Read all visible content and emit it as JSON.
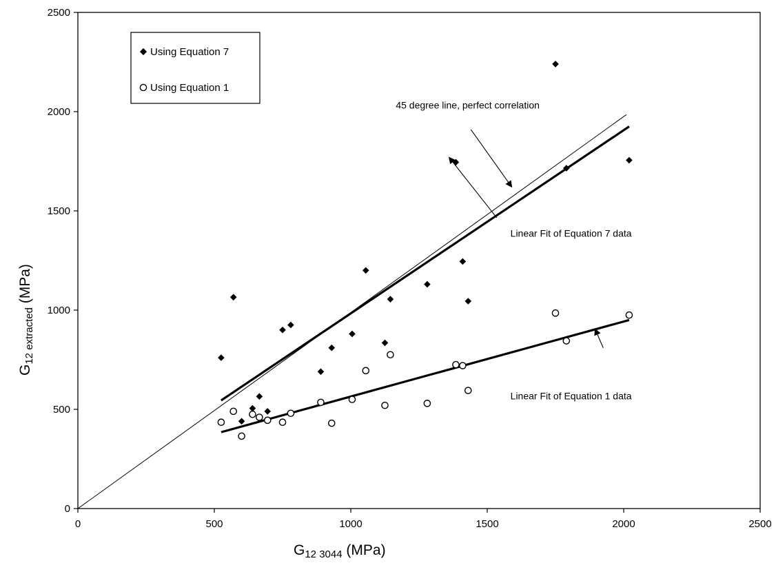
{
  "chart_data": {
    "type": "scatter",
    "xlabel": {
      "main": "G",
      "sub": "12 3044",
      "unit": " (MPa)"
    },
    "ylabel": {
      "main": "G",
      "sub": "12 extracted",
      "unit": " (MPa)"
    },
    "xlim": [
      0,
      2500
    ],
    "ylim": [
      0,
      2500
    ],
    "x_ticks": [
      "0",
      "500",
      "1000",
      "1500",
      "2000",
      "2500"
    ],
    "y_ticks": [
      "0",
      "500",
      "1000",
      "1500",
      "2000",
      "2500"
    ],
    "grid": false,
    "legend": {
      "placement": "top-left",
      "entries": [
        "Using Equation 7",
        "Using Equation 1"
      ]
    },
    "series": [
      {
        "name": "Using Equation 7",
        "marker": "filled-diamond",
        "points": [
          [
            525,
            760
          ],
          [
            570,
            1065
          ],
          [
            600,
            440
          ],
          [
            640,
            505
          ],
          [
            665,
            565
          ],
          [
            695,
            490
          ],
          [
            750,
            900
          ],
          [
            780,
            925
          ],
          [
            890,
            690
          ],
          [
            930,
            810
          ],
          [
            1005,
            880
          ],
          [
            1055,
            1200
          ],
          [
            1125,
            835
          ],
          [
            1145,
            1055
          ],
          [
            1280,
            1130
          ],
          [
            1385,
            1745
          ],
          [
            1410,
            1245
          ],
          [
            1430,
            1045
          ],
          [
            1750,
            2240
          ],
          [
            1790,
            1715
          ],
          [
            2020,
            1755
          ]
        ]
      },
      {
        "name": "Using Equation 1",
        "marker": "open-circle",
        "points": [
          [
            525,
            435
          ],
          [
            570,
            490
          ],
          [
            600,
            365
          ],
          [
            640,
            475
          ],
          [
            665,
            460
          ],
          [
            695,
            445
          ],
          [
            750,
            435
          ],
          [
            780,
            480
          ],
          [
            890,
            535
          ],
          [
            930,
            430
          ],
          [
            1005,
            550
          ],
          [
            1055,
            695
          ],
          [
            1125,
            520
          ],
          [
            1145,
            775
          ],
          [
            1280,
            530
          ],
          [
            1385,
            725
          ],
          [
            1410,
            720
          ],
          [
            1430,
            595
          ],
          [
            1750,
            985
          ],
          [
            1790,
            845
          ],
          [
            2020,
            975
          ]
        ]
      }
    ],
    "lines": [
      {
        "role": "identity",
        "from": [
          0,
          0
        ],
        "to": [
          2010,
          1985
        ]
      },
      {
        "role": "fit-equation-7",
        "from": [
          525,
          545
        ],
        "to": [
          2020,
          1925
        ]
      },
      {
        "role": "fit-equation-1",
        "from": [
          525,
          385
        ],
        "to": [
          2020,
          950
        ]
      }
    ],
    "annotations": [
      {
        "text": "45 degree line, perfect correlation",
        "anchor": [
          1165,
          2015
        ],
        "target": [
          1590,
          1620
        ]
      },
      {
        "text": "Linear Fit of Equation 7 data",
        "anchor": [
          1585,
          1370
        ],
        "target": [
          1360,
          1770
        ]
      },
      {
        "text": "Linear Fit of Equation 1 data",
        "anchor": [
          1585,
          550
        ],
        "target": [
          1895,
          905
        ]
      }
    ],
    "colors": {
      "axis": "#000000",
      "marks": "#000000",
      "background": "#ffffff"
    }
  }
}
